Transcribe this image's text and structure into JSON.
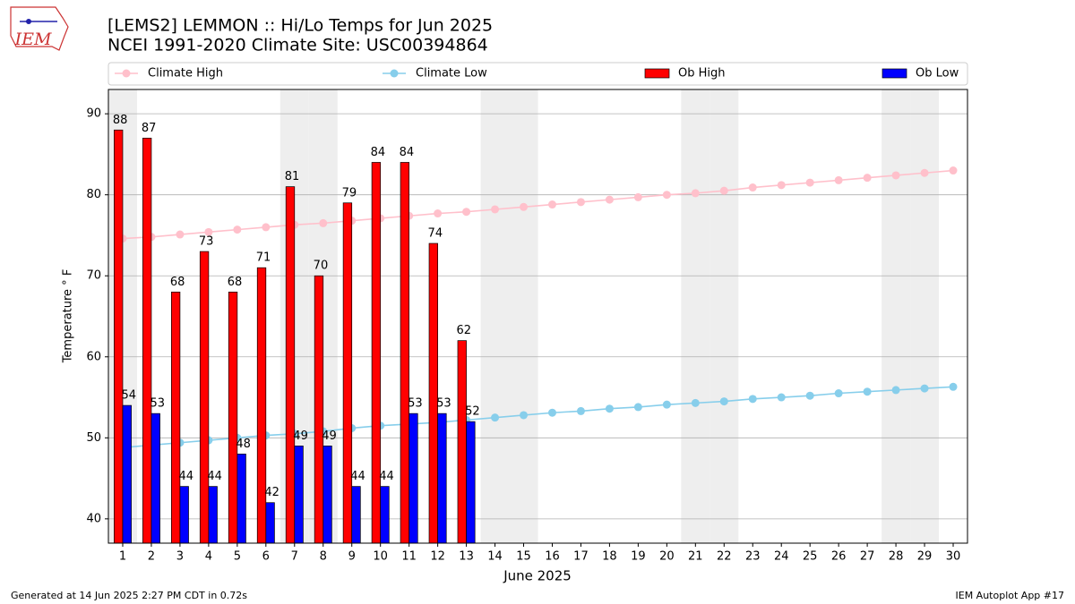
{
  "chart_data": {
    "type": "bar",
    "title": "[LEMS2] LEMMON :: Hi/Lo Temps for Jun 2025",
    "subtitle": "NCEI 1991-2020 Climate Site: USC00394864",
    "xlabel": "June 2025",
    "ylabel": "Temperature ° F",
    "logo_text": "IEM",
    "footer_left": "Generated at 14 Jun 2025 2:27 PM CDT in 0.72s",
    "footer_right": "IEM Autoplot App #17",
    "x": [
      1,
      2,
      3,
      4,
      5,
      6,
      7,
      8,
      9,
      10,
      11,
      12,
      13,
      14,
      15,
      16,
      17,
      18,
      19,
      20,
      21,
      22,
      23,
      24,
      25,
      26,
      27,
      28,
      29,
      30
    ],
    "xlim": [
      0.5,
      30.5
    ],
    "xticks": [
      1,
      2,
      3,
      4,
      5,
      6,
      7,
      8,
      9,
      10,
      11,
      12,
      13,
      14,
      15,
      16,
      17,
      18,
      19,
      20,
      21,
      22,
      23,
      24,
      25,
      26,
      27,
      28,
      29,
      30
    ],
    "ylim": [
      37,
      93
    ],
    "yticks": [
      40,
      50,
      60,
      70,
      80,
      90
    ],
    "grid": true,
    "weekend_days": [
      1,
      7,
      8,
      14,
      15,
      21,
      22,
      28,
      29
    ],
    "series": [
      {
        "name": "Climate High",
        "type": "line",
        "color": "#ffc0cb",
        "values": [
          74.6,
          74.8,
          75.1,
          75.4,
          75.7,
          76.0,
          76.3,
          76.5,
          76.8,
          77.1,
          77.4,
          77.7,
          77.9,
          78.2,
          78.5,
          78.8,
          79.1,
          79.4,
          79.7,
          80.0,
          80.2,
          80.5,
          80.9,
          81.2,
          81.5,
          81.8,
          82.1,
          82.4,
          82.7,
          83.0
        ]
      },
      {
        "name": "Climate Low",
        "type": "line",
        "color": "#87ceeb",
        "values": [
          48.8,
          49.1,
          49.4,
          49.7,
          50.0,
          50.3,
          50.5,
          50.8,
          51.2,
          51.5,
          51.7,
          51.9,
          52.2,
          52.5,
          52.8,
          53.1,
          53.3,
          53.6,
          53.8,
          54.1,
          54.3,
          54.5,
          54.8,
          55.0,
          55.2,
          55.5,
          55.7,
          55.9,
          56.1,
          56.3
        ]
      },
      {
        "name": "Ob High",
        "type": "bar",
        "color": "#ff0000",
        "values": [
          88,
          87,
          68,
          73,
          68,
          71,
          81,
          70,
          79,
          84,
          84,
          74,
          62,
          null,
          null,
          null,
          null,
          null,
          null,
          null,
          null,
          null,
          null,
          null,
          null,
          null,
          null,
          null,
          null,
          null
        ]
      },
      {
        "name": "Ob Low",
        "type": "bar",
        "color": "#0000ff",
        "values": [
          54,
          53,
          44,
          44,
          48,
          42,
          49,
          49,
          44,
          44,
          53,
          53,
          52,
          null,
          null,
          null,
          null,
          null,
          null,
          null,
          null,
          null,
          null,
          null,
          null,
          null,
          null,
          null,
          null,
          null
        ]
      }
    ]
  }
}
